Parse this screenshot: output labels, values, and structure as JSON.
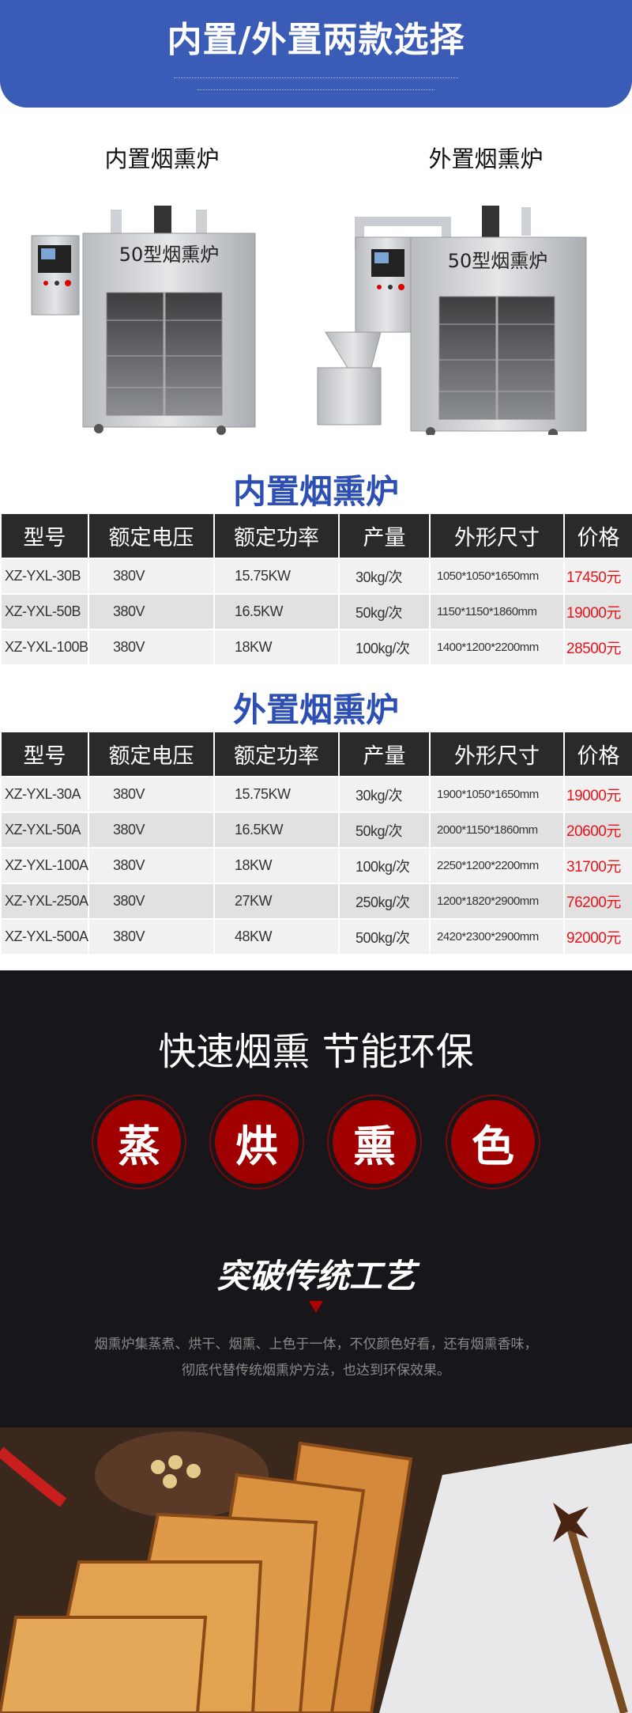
{
  "banner": {
    "title": "内置/外置两款选择"
  },
  "products": {
    "internal_label": "内置烟熏炉",
    "external_label": "外置烟熏炉",
    "machine_plate": "50型烟熏炉"
  },
  "table_internal": {
    "title": "内置烟熏炉",
    "headers": [
      "型号",
      "额定电压",
      "额定功率",
      "产量",
      "外形尺寸",
      "价格"
    ],
    "rows": [
      [
        "XZ-YXL-30B",
        "380V",
        "15.75KW",
        "30kg/次",
        "1050*1050*1650mm",
        "17450元"
      ],
      [
        "XZ-YXL-50B",
        "380V",
        "16.5KW",
        "50kg/次",
        "1150*1150*1860mm",
        "19000元"
      ],
      [
        "XZ-YXL-100B",
        "380V",
        "18KW",
        "100kg/次",
        "1400*1200*2200mm",
        "28500元"
      ]
    ]
  },
  "table_external": {
    "title": "外置烟熏炉",
    "headers": [
      "型号",
      "额定电压",
      "额定功率",
      "产量",
      "外形尺寸",
      "价格"
    ],
    "rows": [
      [
        "XZ-YXL-30A",
        "380V",
        "15.75KW",
        "30kg/次",
        "1900*1050*1650mm",
        "19000元"
      ],
      [
        "XZ-YXL-50A",
        "380V",
        "16.5KW",
        "50kg/次",
        "2000*1150*1860mm",
        "20600元"
      ],
      [
        "XZ-YXL-100A",
        "380V",
        "18KW",
        "100kg/次",
        "2250*1200*2200mm",
        "31700元"
      ],
      [
        "XZ-YXL-250A",
        "380V",
        "27KW",
        "250kg/次",
        "1200*1820*2900mm",
        "76200元"
      ],
      [
        "XZ-YXL-500A",
        "380V",
        "48KW",
        "500kg/次",
        "2420*2300*2900mm",
        "92000元"
      ]
    ]
  },
  "features": {
    "slogan": "快速烟熏 节能环保",
    "badges": [
      "蒸",
      "烘",
      "熏",
      "色"
    ],
    "heading": "突破传统工艺",
    "desc_line1": "烟熏炉集蒸煮、烘干、烟熏、上色于一体，不仅颜色好看，还有烟熏香味，",
    "desc_line2": "彻底代替传统烟熏炉方法，也达到环保效果。"
  },
  "colors": {
    "banner": "#3a5bb6",
    "heading_blue": "#2d4fb3",
    "price_red": "#e8141b",
    "badge_red": "#a00000",
    "dark_bg": "#17161a"
  }
}
